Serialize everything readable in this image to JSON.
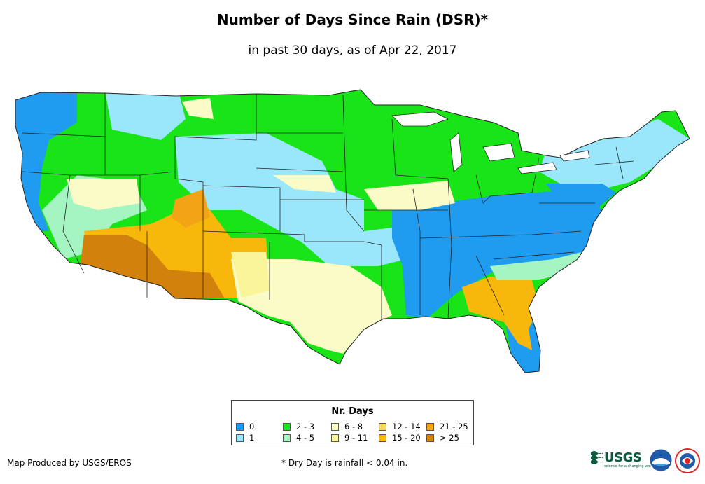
{
  "title": "Number of Days Since Rain (DSR)*",
  "subtitle": "in past 30 days, as of Apr 22, 2017",
  "legend": {
    "title": "Nr. Days",
    "items": [
      {
        "label": "0",
        "color": "#1f9bef"
      },
      {
        "label": "1",
        "color": "#9ae6fb"
      },
      {
        "label": "2 - 3",
        "color": "#18e418"
      },
      {
        "label": "4 - 5",
        "color": "#a5f5c3"
      },
      {
        "label": "6 - 8",
        "color": "#fbfbc8"
      },
      {
        "label": "9 - 11",
        "color": "#faf59a"
      },
      {
        "label": "12 - 14",
        "color": "#f8d860"
      },
      {
        "label": "15 - 20",
        "color": "#f7b80b"
      },
      {
        "label": "21 - 25",
        "color": "#f2a316"
      },
      {
        "label": "> 25",
        "color": "#d2810c"
      }
    ]
  },
  "credit": "Map Produced by USGS/EROS",
  "footnote": "* Dry Day is rainfall < 0.04 in.",
  "logos": {
    "usgs_text": "USGS",
    "usgs_tagline": "science for a changing world"
  },
  "map_regions": [
    {
      "name": "pacific-northwest",
      "category": "0"
    },
    {
      "name": "northern-plains",
      "category": "2 - 3"
    },
    {
      "name": "central-plains",
      "category": "1"
    },
    {
      "name": "southeast",
      "category": "0"
    },
    {
      "name": "desert-southwest",
      "category": "> 25"
    },
    {
      "name": "southern-rockies",
      "category": "15 - 20"
    },
    {
      "name": "texas",
      "category": "6 - 8"
    },
    {
      "name": "great-lakes",
      "category": "2 - 3"
    },
    {
      "name": "northeast",
      "category": "1"
    },
    {
      "name": "georgia-florida",
      "category": "15 - 20"
    }
  ]
}
